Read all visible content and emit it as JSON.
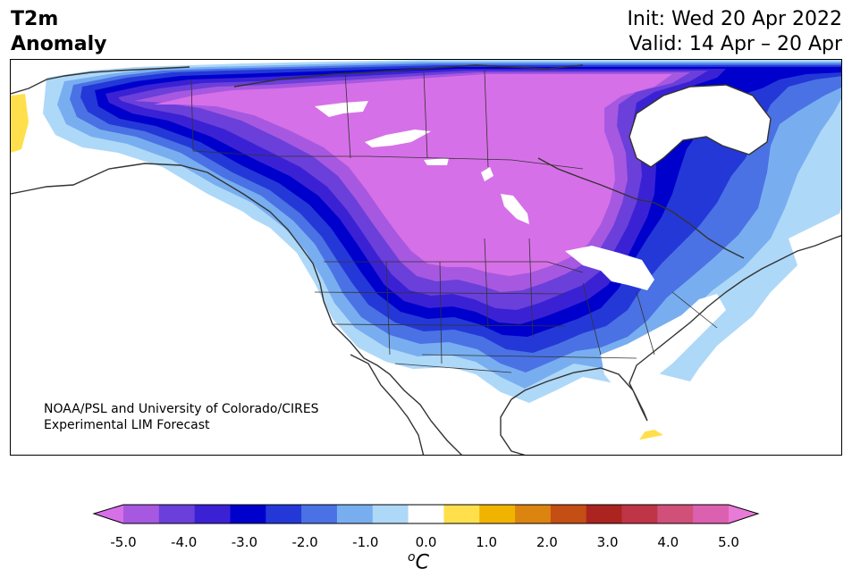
{
  "title": {
    "line1": "T2m",
    "line2": "Anomaly"
  },
  "header_right": {
    "init": "Init: Wed 20 Apr 2022",
    "valid": "Valid: 14 Apr – 20 Apr"
  },
  "credit": {
    "line1": "NOAA/PSL and University of Colorado/CIRES",
    "line2": "Experimental LIM Forecast"
  },
  "colorbar": {
    "ticks": [
      "-5.0",
      "-4.0",
      "-3.0",
      "-2.0",
      "-1.0",
      "0.0",
      "1.0",
      "2.0",
      "3.0",
      "4.0",
      "5.0"
    ],
    "unit_prefix": "o",
    "unit_main": "C",
    "colors": [
      "#d670e8",
      "#a758e0",
      "#6b3fda",
      "#3a22d4",
      "#0000cc",
      "#2438d8",
      "#4a72e4",
      "#78aef0",
      "#aed8f8",
      "#ffffff",
      "#ffe04c",
      "#f0b400",
      "#dc8410",
      "#c44e14",
      "#ac2420",
      "#c03448",
      "#d0507a",
      "#dc60b0",
      "#e87ad8"
    ]
  },
  "anomaly_colors": {
    "m5": "#d670e8",
    "m45": "#a758e0",
    "m4": "#6b3fda",
    "m35": "#3a22d4",
    "m3": "#0000cc",
    "m25": "#2438d8",
    "m2": "#4a72e4",
    "m15": "#78aef0",
    "m1": "#aed8f8",
    "p1": "#ffe04c"
  }
}
